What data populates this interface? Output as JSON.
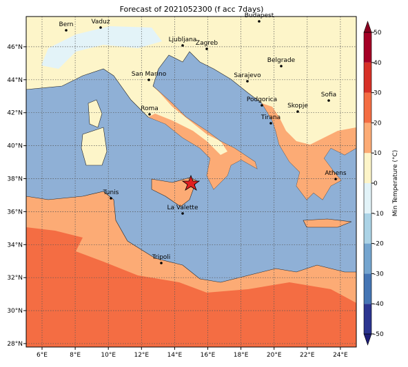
{
  "header": {
    "title": "Forecast of 2021052300 (f acc 7days)"
  },
  "map": {
    "lon_ticks": [
      "6°E",
      "8°E",
      "10°E",
      "12°E",
      "14°E",
      "16°E",
      "18°E",
      "20°E",
      "22°E",
      "24°E"
    ],
    "lat_ticks": [
      "28°N",
      "30°N",
      "32°N",
      "34°N",
      "36°N",
      "38°N",
      "40°N",
      "42°N",
      "44°N",
      "46°N"
    ],
    "cities": [
      {
        "label": "Bern"
      },
      {
        "label": "Vaduz"
      },
      {
        "label": "Budapest"
      },
      {
        "label": "Ljubljana"
      },
      {
        "label": "Zagreb"
      },
      {
        "label": "Belgrade"
      },
      {
        "label": "San Marino"
      },
      {
        "label": "Sarajevo"
      },
      {
        "label": "Podgorica"
      },
      {
        "label": "Sofia"
      },
      {
        "label": "Roma"
      },
      {
        "label": "Skopje"
      },
      {
        "label": "Tirana"
      },
      {
        "label": "Athens"
      },
      {
        "label": "Tunis"
      },
      {
        "label": "La Valette"
      },
      {
        "label": "Tripoli"
      }
    ]
  },
  "colorbar": {
    "label": "Min Temperature (°C)",
    "ticks": [
      -50,
      -40,
      -30,
      -20,
      -10,
      0,
      10,
      20,
      30,
      40,
      50
    ]
  }
}
